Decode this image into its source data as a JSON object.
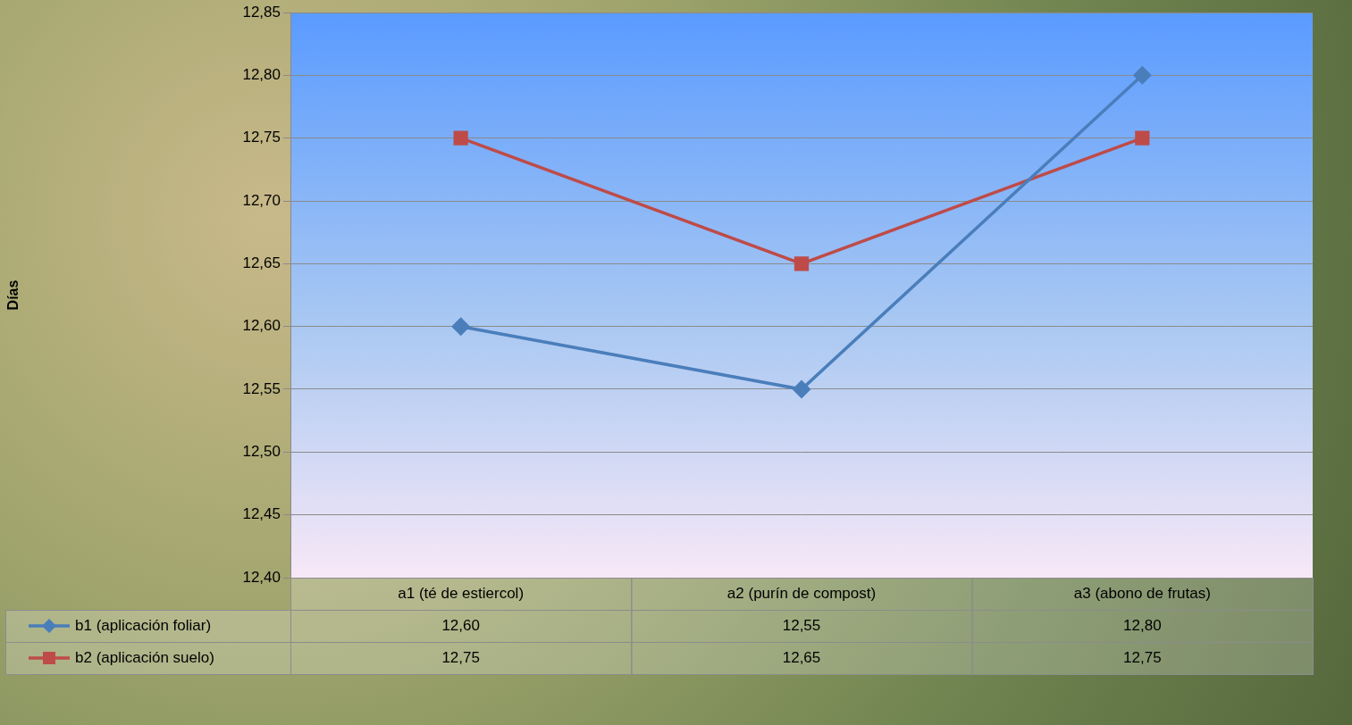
{
  "chart_data": {
    "type": "line",
    "y_label": "Días",
    "categories": [
      "a1 (té de estiercol)",
      "a2 (purín de compost)",
      "a3 (abono de frutas)"
    ],
    "series": [
      {
        "name": "b1 (aplicación foliar)",
        "color": "#4a7ebb",
        "marker": "diamond",
        "values": [
          12.6,
          12.55,
          12.8
        ],
        "value_labels": [
          "12,60",
          "12,55",
          "12,80"
        ]
      },
      {
        "name": "b2 (aplicación suelo)",
        "color": "#be4b48",
        "marker": "square",
        "values": [
          12.75,
          12.65,
          12.75
        ],
        "value_labels": [
          "12,75",
          "12,65",
          "12,75"
        ]
      }
    ],
    "ylim": [
      12.4,
      12.85
    ],
    "yticks": [
      {
        "value": 12.4,
        "label": "12,40"
      },
      {
        "value": 12.45,
        "label": "12,45"
      },
      {
        "value": 12.5,
        "label": "12,50"
      },
      {
        "value": 12.55,
        "label": "12,55"
      },
      {
        "value": 12.6,
        "label": "12,60"
      },
      {
        "value": 12.65,
        "label": "12,65"
      },
      {
        "value": 12.7,
        "label": "12,70"
      },
      {
        "value": 12.75,
        "label": "12,75"
      },
      {
        "value": 12.8,
        "label": "12,80"
      },
      {
        "value": 12.85,
        "label": "12,85"
      }
    ],
    "grid": true,
    "legend": "bottom"
  }
}
